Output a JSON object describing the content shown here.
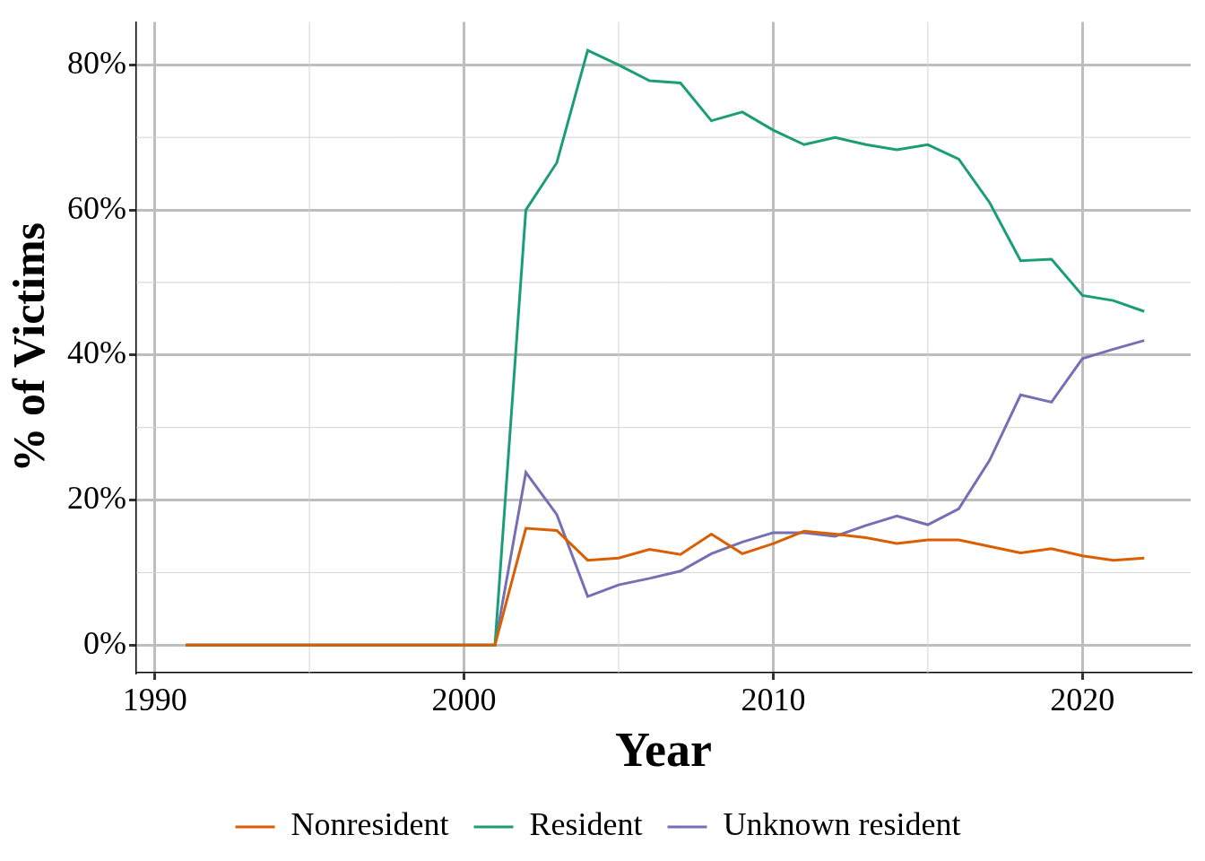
{
  "chart_data": {
    "type": "line",
    "xlabel": "Year",
    "ylabel": "% of Victims",
    "x": [
      1991,
      1992,
      1993,
      1994,
      1995,
      1996,
      1997,
      1998,
      1999,
      2000,
      2001,
      2002,
      2003,
      2004,
      2005,
      2006,
      2007,
      2008,
      2009,
      2010,
      2011,
      2012,
      2013,
      2014,
      2015,
      2016,
      2017,
      2018,
      2019,
      2020,
      2021,
      2022
    ],
    "series": [
      {
        "name": "Nonresident",
        "color": "#d95f02",
        "values": [
          0,
          0,
          0,
          0,
          0,
          0,
          0,
          0,
          0,
          0,
          0,
          16.1,
          15.8,
          11.7,
          12,
          13.2,
          12.5,
          15.3,
          12.6,
          14,
          15.7,
          15.3,
          14.8,
          14,
          14.5,
          14.5,
          13.6,
          12.7,
          13.3,
          12.3,
          11.7,
          12
        ]
      },
      {
        "name": "Resident",
        "color": "#1b9e77",
        "values": [
          0,
          0,
          0,
          0,
          0,
          0,
          0,
          0,
          0,
          0,
          0,
          60,
          66.5,
          82,
          80,
          77.8,
          77.5,
          72.3,
          73.5,
          71,
          69,
          70,
          69,
          68.3,
          69,
          67,
          61,
          53,
          53.2,
          48.2,
          47.5,
          46
        ]
      },
      {
        "name": "Unknown resident",
        "color": "#7570b3",
        "values": [
          0,
          0,
          0,
          0,
          0,
          0,
          0,
          0,
          0,
          0,
          0,
          23.8,
          18,
          6.7,
          8.3,
          9.2,
          10.2,
          12.6,
          14.2,
          15.5,
          15.5,
          15,
          16.5,
          17.8,
          16.6,
          18.8,
          25.5,
          34.5,
          33.5,
          39.5,
          40.8,
          42
        ]
      }
    ],
    "xlim": [
      1989.4,
      2023.5
    ],
    "xticks": [
      1990,
      2000,
      2010,
      2020
    ],
    "ylim": [
      -3.8,
      85.9
    ],
    "yticks": [
      {
        "value": 0,
        "label": "0%"
      },
      {
        "value": 20,
        "label": "20%"
      },
      {
        "value": 40,
        "label": "40%"
      },
      {
        "value": 60,
        "label": "60%"
      },
      {
        "value": 80,
        "label": "80%"
      }
    ],
    "grid": true,
    "legend": "bottom"
  }
}
